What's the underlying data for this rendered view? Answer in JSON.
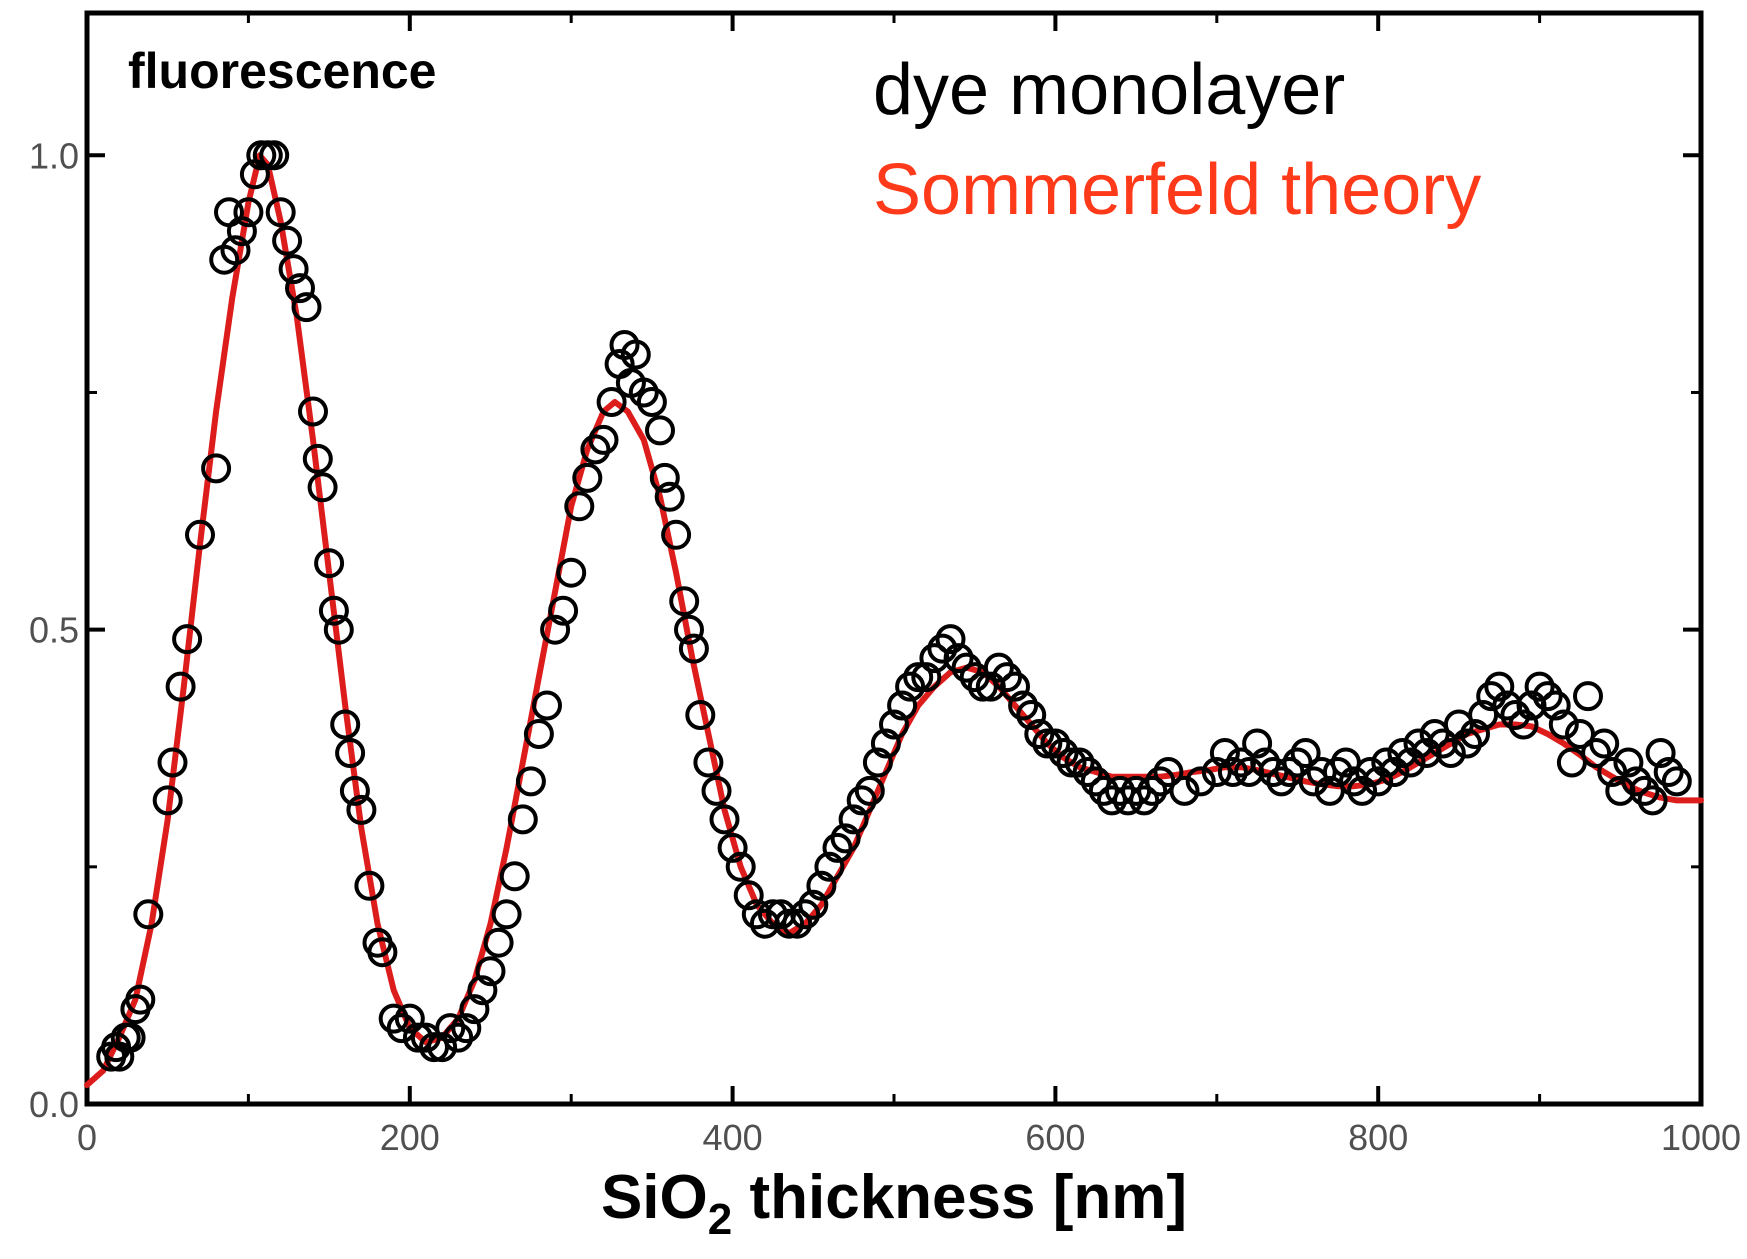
{
  "chart_data": {
    "type": "scatter",
    "ylabel": "fluorescence",
    "xlabel": {
      "pre": "SiO",
      "sub": "2",
      "post": " thickness [nm]"
    },
    "xlim": [
      0,
      1000
    ],
    "ylim": [
      0,
      1.15
    ],
    "x_ticks": [
      0,
      200,
      400,
      600,
      800,
      1000
    ],
    "x_tick_labels": [
      "0",
      "200",
      "400",
      "600",
      "800",
      "1000"
    ],
    "y_ticks": [
      0.0,
      0.5,
      1.0
    ],
    "y_tick_labels": [
      "0.0",
      "0.5",
      "1.0"
    ],
    "grid": false,
    "legend_placement": "top-right",
    "series": [
      {
        "name": "dye monolayer",
        "kind": "scatter",
        "color": "#000000",
        "marker": "open-circle",
        "points": [
          [
            15,
            0.05
          ],
          [
            18,
            0.06
          ],
          [
            20,
            0.05
          ],
          [
            24,
            0.07
          ],
          [
            27,
            0.07
          ],
          [
            30,
            0.1
          ],
          [
            33,
            0.11
          ],
          [
            38,
            0.2
          ],
          [
            50,
            0.32
          ],
          [
            53,
            0.36
          ],
          [
            58,
            0.44
          ],
          [
            62,
            0.49
          ],
          [
            70,
            0.6
          ],
          [
            80,
            0.67
          ],
          [
            85,
            0.89
          ],
          [
            88,
            0.94
          ],
          [
            92,
            0.9
          ],
          [
            96,
            0.92
          ],
          [
            100,
            0.94
          ],
          [
            104,
            0.98
          ],
          [
            108,
            1.0
          ],
          [
            112,
            1.0
          ],
          [
            116,
            1.0
          ],
          [
            120,
            0.94
          ],
          [
            124,
            0.91
          ],
          [
            128,
            0.88
          ],
          [
            132,
            0.86
          ],
          [
            136,
            0.84
          ],
          [
            140,
            0.73
          ],
          [
            143,
            0.68
          ],
          [
            146,
            0.65
          ],
          [
            150,
            0.57
          ],
          [
            153,
            0.52
          ],
          [
            156,
            0.5
          ],
          [
            160,
            0.4
          ],
          [
            163,
            0.37
          ],
          [
            166,
            0.33
          ],
          [
            170,
            0.31
          ],
          [
            175,
            0.23
          ],
          [
            180,
            0.17
          ],
          [
            183,
            0.16
          ],
          [
            190,
            0.09
          ],
          [
            195,
            0.08
          ],
          [
            200,
            0.09
          ],
          [
            205,
            0.07
          ],
          [
            210,
            0.07
          ],
          [
            215,
            0.06
          ],
          [
            220,
            0.06
          ],
          [
            225,
            0.08
          ],
          [
            230,
            0.07
          ],
          [
            235,
            0.08
          ],
          [
            240,
            0.1
          ],
          [
            245,
            0.12
          ],
          [
            250,
            0.14
          ],
          [
            255,
            0.17
          ],
          [
            260,
            0.2
          ],
          [
            265,
            0.24
          ],
          [
            270,
            0.3
          ],
          [
            275,
            0.34
          ],
          [
            280,
            0.39
          ],
          [
            285,
            0.42
          ],
          [
            290,
            0.5
          ],
          [
            295,
            0.52
          ],
          [
            300,
            0.56
          ],
          [
            305,
            0.63
          ],
          [
            310,
            0.66
          ],
          [
            315,
            0.69
          ],
          [
            320,
            0.7
          ],
          [
            325,
            0.74
          ],
          [
            330,
            0.78
          ],
          [
            333,
            0.8
          ],
          [
            337,
            0.76
          ],
          [
            340,
            0.79
          ],
          [
            345,
            0.75
          ],
          [
            350,
            0.74
          ],
          [
            355,
            0.71
          ],
          [
            358,
            0.66
          ],
          [
            361,
            0.64
          ],
          [
            365,
            0.6
          ],
          [
            370,
            0.53
          ],
          [
            373,
            0.5
          ],
          [
            376,
            0.48
          ],
          [
            380,
            0.41
          ],
          [
            385,
            0.36
          ],
          [
            390,
            0.33
          ],
          [
            395,
            0.3
          ],
          [
            400,
            0.27
          ],
          [
            405,
            0.25
          ],
          [
            410,
            0.22
          ],
          [
            415,
            0.2
          ],
          [
            420,
            0.19
          ],
          [
            425,
            0.2
          ],
          [
            430,
            0.2
          ],
          [
            435,
            0.19
          ],
          [
            440,
            0.19
          ],
          [
            445,
            0.2
          ],
          [
            450,
            0.21
          ],
          [
            455,
            0.23
          ],
          [
            460,
            0.25
          ],
          [
            465,
            0.27
          ],
          [
            470,
            0.28
          ],
          [
            475,
            0.3
          ],
          [
            480,
            0.32
          ],
          [
            485,
            0.33
          ],
          [
            490,
            0.36
          ],
          [
            495,
            0.38
          ],
          [
            500,
            0.4
          ],
          [
            505,
            0.42
          ],
          [
            510,
            0.44
          ],
          [
            515,
            0.45
          ],
          [
            520,
            0.45
          ],
          [
            525,
            0.47
          ],
          [
            530,
            0.48
          ],
          [
            535,
            0.49
          ],
          [
            540,
            0.47
          ],
          [
            545,
            0.46
          ],
          [
            550,
            0.45
          ],
          [
            555,
            0.44
          ],
          [
            560,
            0.44
          ],
          [
            565,
            0.46
          ],
          [
            570,
            0.45
          ],
          [
            575,
            0.44
          ],
          [
            580,
            0.42
          ],
          [
            585,
            0.41
          ],
          [
            590,
            0.39
          ],
          [
            595,
            0.38
          ],
          [
            600,
            0.38
          ],
          [
            605,
            0.37
          ],
          [
            610,
            0.36
          ],
          [
            615,
            0.36
          ],
          [
            620,
            0.35
          ],
          [
            625,
            0.34
          ],
          [
            630,
            0.33
          ],
          [
            635,
            0.32
          ],
          [
            640,
            0.33
          ],
          [
            645,
            0.32
          ],
          [
            650,
            0.33
          ],
          [
            655,
            0.32
          ],
          [
            660,
            0.33
          ],
          [
            665,
            0.34
          ],
          [
            670,
            0.35
          ],
          [
            680,
            0.33
          ],
          [
            690,
            0.34
          ],
          [
            700,
            0.35
          ],
          [
            705,
            0.37
          ],
          [
            710,
            0.35
          ],
          [
            715,
            0.36
          ],
          [
            720,
            0.35
          ],
          [
            725,
            0.38
          ],
          [
            730,
            0.36
          ],
          [
            735,
            0.35
          ],
          [
            740,
            0.34
          ],
          [
            745,
            0.35
          ],
          [
            750,
            0.36
          ],
          [
            755,
            0.37
          ],
          [
            760,
            0.34
          ],
          [
            765,
            0.35
          ],
          [
            770,
            0.33
          ],
          [
            775,
            0.35
          ],
          [
            780,
            0.36
          ],
          [
            785,
            0.34
          ],
          [
            790,
            0.33
          ],
          [
            795,
            0.35
          ],
          [
            800,
            0.34
          ],
          [
            805,
            0.36
          ],
          [
            810,
            0.35
          ],
          [
            815,
            0.37
          ],
          [
            820,
            0.36
          ],
          [
            825,
            0.38
          ],
          [
            830,
            0.37
          ],
          [
            835,
            0.39
          ],
          [
            840,
            0.38
          ],
          [
            845,
            0.37
          ],
          [
            850,
            0.4
          ],
          [
            855,
            0.38
          ],
          [
            860,
            0.39
          ],
          [
            865,
            0.41
          ],
          [
            870,
            0.43
          ],
          [
            875,
            0.44
          ],
          [
            880,
            0.42
          ],
          [
            885,
            0.41
          ],
          [
            890,
            0.4
          ],
          [
            895,
            0.42
          ],
          [
            900,
            0.44
          ],
          [
            905,
            0.43
          ],
          [
            910,
            0.42
          ],
          [
            915,
            0.4
          ],
          [
            920,
            0.36
          ],
          [
            925,
            0.39
          ],
          [
            930,
            0.43
          ],
          [
            935,
            0.37
          ],
          [
            940,
            0.38
          ],
          [
            945,
            0.35
          ],
          [
            950,
            0.33
          ],
          [
            955,
            0.36
          ],
          [
            960,
            0.34
          ],
          [
            965,
            0.33
          ],
          [
            970,
            0.32
          ],
          [
            975,
            0.37
          ],
          [
            980,
            0.35
          ],
          [
            985,
            0.34
          ]
        ]
      },
      {
        "name": "Sommerfeld theory",
        "kind": "line",
        "color": "#ff3a1a",
        "line_color": "#dd1c1c",
        "points": [
          [
            0,
            0.02
          ],
          [
            10,
            0.035
          ],
          [
            20,
            0.07
          ],
          [
            30,
            0.11
          ],
          [
            40,
            0.19
          ],
          [
            50,
            0.3
          ],
          [
            60,
            0.44
          ],
          [
            70,
            0.59
          ],
          [
            80,
            0.73
          ],
          [
            90,
            0.85
          ],
          [
            100,
            0.95
          ],
          [
            107,
            1.0
          ],
          [
            112,
            0.99
          ],
          [
            120,
            0.93
          ],
          [
            130,
            0.83
          ],
          [
            140,
            0.7
          ],
          [
            150,
            0.56
          ],
          [
            160,
            0.42
          ],
          [
            170,
            0.29
          ],
          [
            180,
            0.19
          ],
          [
            190,
            0.12
          ],
          [
            200,
            0.08
          ],
          [
            210,
            0.065
          ],
          [
            220,
            0.07
          ],
          [
            230,
            0.09
          ],
          [
            240,
            0.13
          ],
          [
            250,
            0.19
          ],
          [
            260,
            0.27
          ],
          [
            270,
            0.36
          ],
          [
            280,
            0.45
          ],
          [
            290,
            0.54
          ],
          [
            300,
            0.63
          ],
          [
            310,
            0.69
          ],
          [
            320,
            0.73
          ],
          [
            327,
            0.74
          ],
          [
            335,
            0.73
          ],
          [
            345,
            0.7
          ],
          [
            355,
            0.64
          ],
          [
            365,
            0.56
          ],
          [
            375,
            0.47
          ],
          [
            385,
            0.39
          ],
          [
            395,
            0.31
          ],
          [
            405,
            0.25
          ],
          [
            415,
            0.21
          ],
          [
            425,
            0.19
          ],
          [
            435,
            0.18
          ],
          [
            445,
            0.19
          ],
          [
            455,
            0.21
          ],
          [
            465,
            0.24
          ],
          [
            475,
            0.27
          ],
          [
            485,
            0.31
          ],
          [
            495,
            0.35
          ],
          [
            505,
            0.39
          ],
          [
            515,
            0.42
          ],
          [
            525,
            0.44
          ],
          [
            535,
            0.455
          ],
          [
            545,
            0.46
          ],
          [
            555,
            0.455
          ],
          [
            565,
            0.44
          ],
          [
            575,
            0.42
          ],
          [
            585,
            0.4
          ],
          [
            595,
            0.38
          ],
          [
            605,
            0.365
          ],
          [
            615,
            0.355
          ],
          [
            625,
            0.35
          ],
          [
            635,
            0.345
          ],
          [
            645,
            0.345
          ],
          [
            655,
            0.345
          ],
          [
            665,
            0.345
          ],
          [
            675,
            0.347
          ],
          [
            685,
            0.35
          ],
          [
            695,
            0.352
          ],
          [
            705,
            0.355
          ],
          [
            715,
            0.355
          ],
          [
            725,
            0.352
          ],
          [
            735,
            0.348
          ],
          [
            745,
            0.344
          ],
          [
            755,
            0.34
          ],
          [
            765,
            0.337
          ],
          [
            775,
            0.335
          ],
          [
            785,
            0.335
          ],
          [
            795,
            0.337
          ],
          [
            805,
            0.342
          ],
          [
            815,
            0.35
          ],
          [
            825,
            0.36
          ],
          [
            835,
            0.37
          ],
          [
            845,
            0.38
          ],
          [
            855,
            0.39
          ],
          [
            865,
            0.395
          ],
          [
            875,
            0.4
          ],
          [
            885,
            0.4
          ],
          [
            895,
            0.398
          ],
          [
            905,
            0.39
          ],
          [
            915,
            0.38
          ],
          [
            925,
            0.368
          ],
          [
            935,
            0.355
          ],
          [
            945,
            0.345
          ],
          [
            955,
            0.335
          ],
          [
            965,
            0.328
          ],
          [
            975,
            0.323
          ],
          [
            985,
            0.32
          ],
          [
            995,
            0.32
          ],
          [
            1000,
            0.32
          ]
        ]
      }
    ]
  }
}
